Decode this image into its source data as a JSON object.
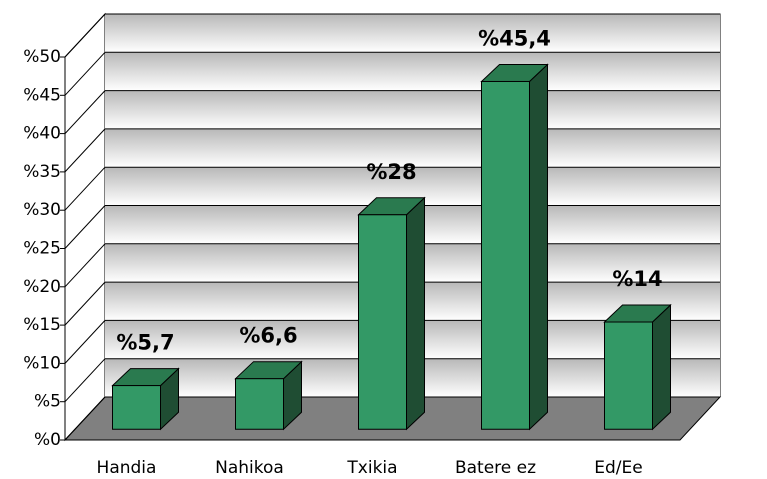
{
  "chart_data": {
    "type": "bar3d",
    "categories": [
      "Handia",
      "Nahikoa",
      "Txikia",
      "Batere ez",
      "Ed/Ee"
    ],
    "values": [
      5.7,
      6.6,
      28,
      45.4,
      14
    ],
    "value_labels": [
      "%5,7",
      "%6,6",
      "%28",
      "%45,4",
      "%14"
    ],
    "color": "#339966",
    "ylim": [
      0,
      50
    ],
    "yticks": [
      {
        "value": 0,
        "label": "%0"
      },
      {
        "value": 5,
        "label": "%5"
      },
      {
        "value": 10,
        "label": "%10"
      },
      {
        "value": 15,
        "label": "%15"
      },
      {
        "value": 20,
        "label": "%20"
      },
      {
        "value": 25,
        "label": "%25"
      },
      {
        "value": 30,
        "label": "%30"
      },
      {
        "value": 35,
        "label": "%35"
      },
      {
        "value": 40,
        "label": "%40"
      },
      {
        "value": 45,
        "label": "%45"
      },
      {
        "value": 50,
        "label": "%50"
      }
    ],
    "grid": true
  }
}
